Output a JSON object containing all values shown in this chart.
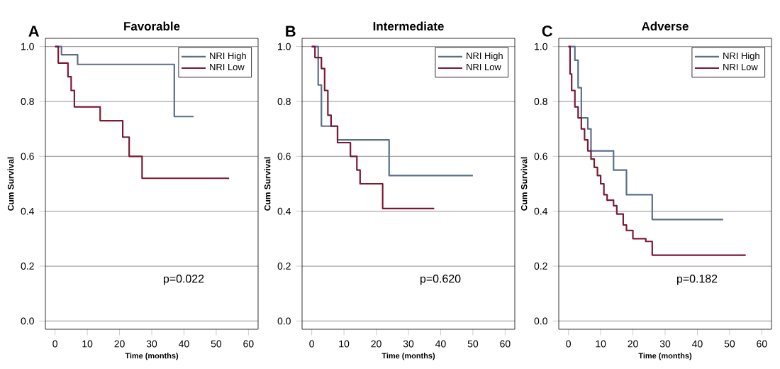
{
  "chart_data": [
    {
      "type": "step",
      "title": "Favorable",
      "xlabel": "Time (months)",
      "ylabel": "Cum Survival",
      "annotations": [
        "A",
        "p=0.022"
      ],
      "xlim": [
        -3,
        63
      ],
      "ylim": [
        -0.03,
        1.03
      ],
      "xticks": [
        0,
        10,
        20,
        30,
        40,
        50,
        60
      ],
      "yticks": [
        {
          "value": 0,
          "label": "0.0"
        },
        {
          "value": 0.2,
          "label": "0.2"
        },
        {
          "value": 0.4,
          "label": "0.4"
        },
        {
          "value": 0.6,
          "label": "0.6"
        },
        {
          "value": 0.8,
          "label": "0.8"
        },
        {
          "value": 1,
          "label": "1.0"
        }
      ],
      "grid": "y",
      "legend": "top right",
      "series": [
        {
          "name": "NRI High",
          "color": "#5a7089",
          "x": [
            0,
            2,
            7,
            37,
            43
          ],
          "values": [
            1.0,
            0.97,
            0.935,
            0.745,
            0.745
          ]
        },
        {
          "name": "NRI Low",
          "color": "#7a1a35",
          "x": [
            0,
            1,
            4,
            5,
            6,
            14,
            21,
            23,
            27,
            54
          ],
          "values": [
            1.0,
            0.94,
            0.89,
            0.84,
            0.78,
            0.73,
            0.67,
            0.6,
            0.52,
            0.52
          ]
        }
      ]
    },
    {
      "type": "step",
      "title": "Intermediate",
      "xlabel": "Time (months)",
      "ylabel": "Cum Survival",
      "annotations": [
        "B",
        "p=0.620"
      ],
      "xlim": [
        -3,
        63
      ],
      "ylim": [
        -0.03,
        1.03
      ],
      "xticks": [
        0,
        10,
        20,
        30,
        40,
        50,
        60
      ],
      "yticks": [
        {
          "value": 0,
          "label": "0.0"
        },
        {
          "value": 0.2,
          "label": "0.2"
        },
        {
          "value": 0.4,
          "label": "0.4"
        },
        {
          "value": 0.6,
          "label": "0.6"
        },
        {
          "value": 0.8,
          "label": "0.8"
        },
        {
          "value": 1,
          "label": "1.0"
        }
      ],
      "grid": "y",
      "legend": "top right",
      "series": [
        {
          "name": "NRI High",
          "color": "#5a7089",
          "x": [
            0,
            2,
            3,
            8,
            24,
            50
          ],
          "values": [
            1.0,
            0.86,
            0.71,
            0.66,
            0.53,
            0.53
          ]
        },
        {
          "name": "NRI Low",
          "color": "#7a1a35",
          "x": [
            0,
            1,
            3,
            4,
            5,
            6,
            8,
            12,
            14,
            15,
            22,
            38
          ],
          "values": [
            1.0,
            0.96,
            0.92,
            0.84,
            0.75,
            0.71,
            0.65,
            0.6,
            0.55,
            0.5,
            0.41,
            0.41
          ]
        }
      ]
    },
    {
      "type": "step",
      "title": "Adverse",
      "xlabel": "Time (months)",
      "ylabel": "Cum Survival",
      "annotations": [
        "C",
        "p=0.182"
      ],
      "xlim": [
        -3,
        63
      ],
      "ylim": [
        -0.03,
        1.03
      ],
      "xticks": [
        0,
        10,
        20,
        30,
        40,
        50,
        60
      ],
      "yticks": [
        {
          "value": 0,
          "label": "0.0"
        },
        {
          "value": 0.2,
          "label": "0.2"
        },
        {
          "value": 0.4,
          "label": "0.4"
        },
        {
          "value": 0.6,
          "label": "0.6"
        },
        {
          "value": 0.8,
          "label": "0.8"
        },
        {
          "value": 1,
          "label": "1.0"
        }
      ],
      "grid": "y",
      "legend": "top right",
      "series": [
        {
          "name": "NRI High",
          "color": "#5a7089",
          "x": [
            0,
            2,
            3,
            4,
            6,
            7,
            14,
            18,
            26,
            48
          ],
          "values": [
            1.0,
            0.95,
            0.85,
            0.74,
            0.7,
            0.62,
            0.55,
            0.46,
            0.37,
            0.37
          ]
        },
        {
          "name": "NRI Low",
          "color": "#7a1a35",
          "x": [
            0,
            0.5,
            1,
            2,
            3,
            4,
            5,
            6,
            7,
            8,
            9,
            10,
            11,
            12,
            14,
            15,
            17,
            18,
            20,
            24,
            26,
            55
          ],
          "values": [
            1.0,
            0.9,
            0.84,
            0.78,
            0.74,
            0.7,
            0.66,
            0.62,
            0.59,
            0.56,
            0.53,
            0.5,
            0.46,
            0.44,
            0.42,
            0.39,
            0.35,
            0.33,
            0.3,
            0.29,
            0.24,
            0.24
          ]
        }
      ]
    }
  ]
}
